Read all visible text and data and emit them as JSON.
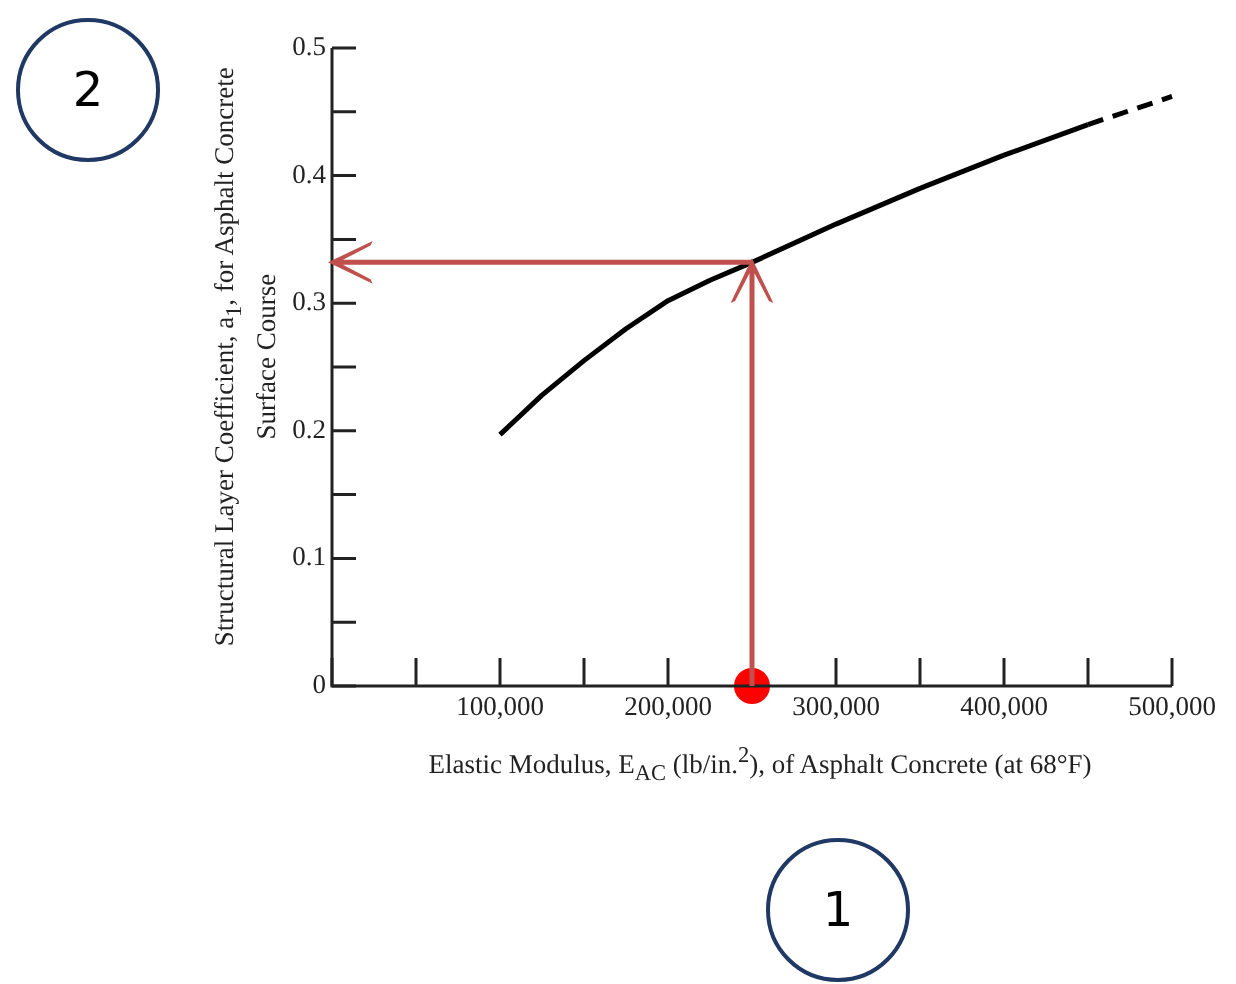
{
  "chart_data": {
    "type": "line",
    "xlabel": "Elastic Modulus, E$_{AC}$ (lb/in.$^{2}$), of Asphalt Concrete (at 68°F)",
    "ylabel": "Structural Layer Coefficient, a$_{1}$, for Asphalt Concrete Surface Course",
    "series": [
      {
        "x": [
          100000,
          125000,
          150000,
          175000,
          200000,
          225000,
          250000,
          300000,
          350000,
          400000,
          450000
        ],
        "values": [
          0.197,
          0.228,
          0.255,
          0.28,
          0.302,
          0.318,
          0.332,
          0.362,
          0.39,
          0.416,
          0.44
        ],
        "color": "#000000",
        "line_style": "solid"
      },
      {
        "x": [
          450000,
          475000,
          500000
        ],
        "values": [
          0.44,
          0.451,
          0.462
        ],
        "color": "#000000",
        "line_style": "dashed"
      },
      {
        "type": "scatter",
        "x": [
          250000
        ],
        "values": [
          0
        ],
        "color": "#ff0000",
        "marker": "circle"
      }
    ],
    "xlim": [
      0,
      500000
    ],
    "xticks": [
      {
        "value": 0,
        "label": null
      },
      {
        "value": 50000,
        "label": null
      },
      {
        "value": 100000,
        "label": "100,000"
      },
      {
        "value": 150000,
        "label": null
      },
      {
        "value": 200000,
        "label": "200,000"
      },
      {
        "value": 250000,
        "label": null
      },
      {
        "value": 300000,
        "label": "300,000"
      },
      {
        "value": 350000,
        "label": null
      },
      {
        "value": 400000,
        "label": "400,000"
      },
      {
        "value": 450000,
        "label": null
      },
      {
        "value": 500000,
        "label": "500,000"
      }
    ],
    "ylim": [
      0,
      0.5
    ],
    "yticks": [
      0,
      {
        "value": 0.05,
        "label": null
      },
      0.1,
      {
        "value": 0.15,
        "label": null
      },
      0.2,
      {
        "value": 0.25,
        "label": null
      },
      0.3,
      {
        "value": 0.35,
        "label": null
      },
      0.4,
      {
        "value": 0.45,
        "label": null
      },
      0.5
    ],
    "grid": false,
    "legend": false,
    "marker": "none",
    "annotations": [
      "1",
      "2"
    ]
  }
}
